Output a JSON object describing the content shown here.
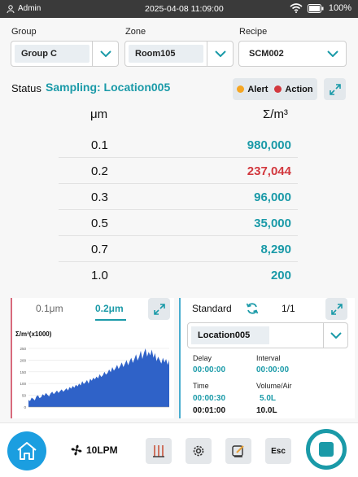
{
  "status_bar": {
    "user": "Admin",
    "datetime": "2025-04-08 11:09:00",
    "battery": "100%"
  },
  "selectors": {
    "group": {
      "label": "Group",
      "value": "Group C"
    },
    "zone": {
      "label": "Zone",
      "value": "Room105"
    },
    "recipe": {
      "label": "Recipe",
      "value": "SCM002"
    }
  },
  "status": {
    "label": "Status",
    "value": "Sampling: Location005"
  },
  "legend": {
    "alert": "Alert",
    "action": "Action",
    "alert_color": "#f5a623",
    "action_color": "#d2383e"
  },
  "table": {
    "col_size": "μm",
    "col_count": "Σ/m³",
    "rows": [
      {
        "size": "0.1",
        "count": "980,000",
        "state": "normal"
      },
      {
        "size": "0.2",
        "count": "237,044",
        "state": "action"
      },
      {
        "size": "0.3",
        "count": "96,000",
        "state": "normal"
      },
      {
        "size": "0.5",
        "count": "35,000",
        "state": "normal"
      },
      {
        "size": "0.7",
        "count": "8,290",
        "state": "normal"
      },
      {
        "size": "1.0",
        "count": "200",
        "state": "normal"
      }
    ]
  },
  "chart_panel": {
    "tabs": [
      {
        "label": "0.1μm",
        "active": false
      },
      {
        "label": "0.2μm",
        "active": true
      }
    ],
    "ylabel": "Σ/m³(x1000)"
  },
  "chart_data": {
    "type": "area",
    "title": "",
    "ylabel": "Σ/m³(x1000)",
    "ylim": [
      0,
      250
    ],
    "yticks": [
      0,
      50,
      100,
      150,
      200,
      250
    ],
    "values": [
      30,
      25,
      40,
      35,
      28,
      45,
      50,
      38,
      42,
      55,
      48,
      60,
      52,
      45,
      58,
      65,
      55,
      62,
      70,
      60,
      68,
      75,
      65,
      72,
      80,
      70,
      85,
      78,
      90,
      82,
      95,
      88,
      100,
      92,
      110,
      98,
      105,
      115,
      100,
      120,
      112,
      125,
      118,
      130,
      122,
      140,
      128,
      135,
      150,
      138,
      145,
      160,
      148,
      170,
      155,
      165,
      180,
      162,
      175,
      190,
      170,
      185,
      200,
      178,
      195,
      210,
      188,
      205,
      225,
      198,
      215,
      240,
      205,
      230,
      250,
      215,
      235,
      220,
      245,
      210,
      230,
      195,
      215,
      200,
      185,
      210,
      190,
      205,
      180,
      200
    ]
  },
  "standard_panel": {
    "label": "Standard",
    "page": "1/1",
    "location": "Location005",
    "delay": {
      "label": "Delay",
      "value": "00:00:00"
    },
    "interval": {
      "label": "Interval",
      "value": "00:00:00"
    },
    "time": {
      "label": "Time",
      "elapsed": "00:00:30",
      "total": "00:01:00"
    },
    "volume": {
      "label": "Volume/Air",
      "current": "5.0L",
      "total": "10.0L"
    }
  },
  "bottom_bar": {
    "flow": "10LPM",
    "esc_label": "Esc"
  },
  "colors": {
    "teal": "#1a9aa8",
    "action": "#d2383e",
    "blue": "#1b9ee0",
    "chart_fill": "#2f62c8"
  }
}
